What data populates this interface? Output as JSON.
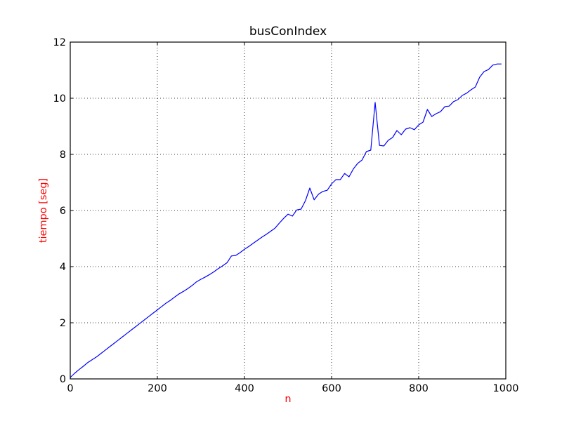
{
  "chart_data": {
    "type": "line",
    "title": "busConIndex",
    "xlabel": "n",
    "ylabel": "tiempo [seg]",
    "xlim": [
      0,
      1000
    ],
    "ylim": [
      0,
      12
    ],
    "x_ticks": [
      0,
      200,
      400,
      600,
      800,
      1000
    ],
    "y_ticks": [
      0,
      2,
      4,
      6,
      8,
      10,
      12
    ],
    "grid": true,
    "grid_style": "dotted",
    "label_color": "#ff0000",
    "series": [
      {
        "color": "#0000ff",
        "x": [
          0,
          10,
          20,
          30,
          40,
          50,
          60,
          70,
          80,
          90,
          100,
          110,
          120,
          130,
          140,
          150,
          160,
          170,
          180,
          190,
          200,
          210,
          220,
          230,
          240,
          250,
          260,
          270,
          280,
          290,
          300,
          310,
          320,
          330,
          340,
          350,
          360,
          370,
          380,
          390,
          400,
          410,
          420,
          430,
          440,
          450,
          460,
          470,
          480,
          490,
          500,
          510,
          520,
          530,
          540,
          550,
          560,
          570,
          580,
          590,
          600,
          610,
          620,
          630,
          640,
          650,
          660,
          670,
          680,
          690,
          700,
          710,
          720,
          730,
          740,
          750,
          760,
          770,
          780,
          790,
          800,
          810,
          820,
          830,
          840,
          850,
          860,
          870,
          880,
          890,
          900,
          910,
          920,
          930,
          940,
          950,
          960,
          970,
          980,
          990
        ],
        "y": [
          0.05,
          0.2,
          0.33,
          0.45,
          0.58,
          0.68,
          0.78,
          0.9,
          1.02,
          1.14,
          1.26,
          1.38,
          1.5,
          1.62,
          1.74,
          1.86,
          1.98,
          2.1,
          2.22,
          2.34,
          2.46,
          2.58,
          2.7,
          2.8,
          2.92,
          3.03,
          3.12,
          3.22,
          3.33,
          3.46,
          3.55,
          3.63,
          3.72,
          3.82,
          3.93,
          4.03,
          4.14,
          4.38,
          4.4,
          4.5,
          4.62,
          4.72,
          4.83,
          4.94,
          5.05,
          5.15,
          5.26,
          5.37,
          5.55,
          5.72,
          5.87,
          5.8,
          6.02,
          6.05,
          6.35,
          6.8,
          6.38,
          6.58,
          6.68,
          6.72,
          6.95,
          7.1,
          7.1,
          7.32,
          7.2,
          7.48,
          7.68,
          7.8,
          8.1,
          8.15,
          9.85,
          8.32,
          8.3,
          8.5,
          8.6,
          8.85,
          8.7,
          8.9,
          8.95,
          8.88,
          9.05,
          9.15,
          9.6,
          9.35,
          9.45,
          9.52,
          9.7,
          9.72,
          9.88,
          9.95,
          10.1,
          10.18,
          10.3,
          10.4,
          10.75,
          10.95,
          11.02,
          11.18,
          11.22,
          11.22
        ]
      }
    ]
  }
}
